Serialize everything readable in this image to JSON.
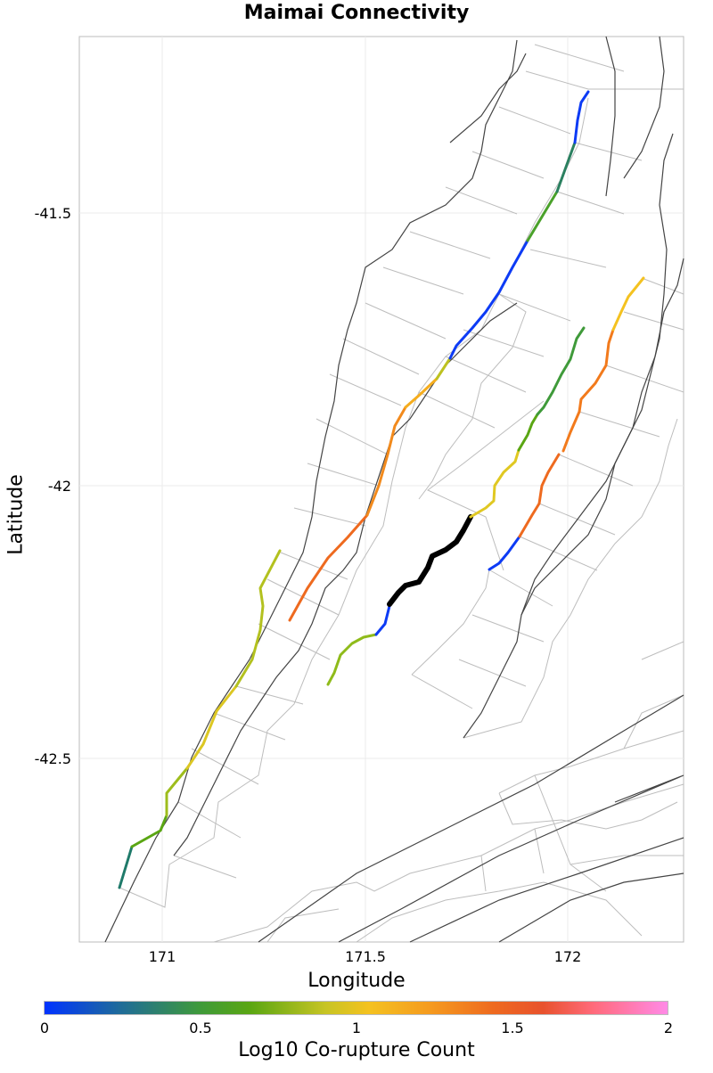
{
  "title": "Maimai Connectivity",
  "x_axis": {
    "label": "Longitude",
    "ticks": [
      "171",
      "171.5",
      "172"
    ]
  },
  "y_axis": {
    "label": "Latitude",
    "ticks": [
      "-41.5",
      "-42",
      "-42.5"
    ]
  },
  "colorbar": {
    "label": "Log10 Co-rupture Count",
    "ticks": [
      "0",
      "0.5",
      "1",
      "1.5",
      "2"
    ],
    "colors": [
      "#0033ff",
      "#1f6b9a",
      "#3f9a3a",
      "#5aa613",
      "#c6c424",
      "#f4c220",
      "#f59a1f",
      "#ee6a1f",
      "#e8522d",
      "#ff6a7a",
      "#ff8ae6"
    ]
  },
  "legend_colors": {
    "source_fault": "#000000",
    "trace": "#444444",
    "subsection_outline": "#b8b8b8"
  }
}
